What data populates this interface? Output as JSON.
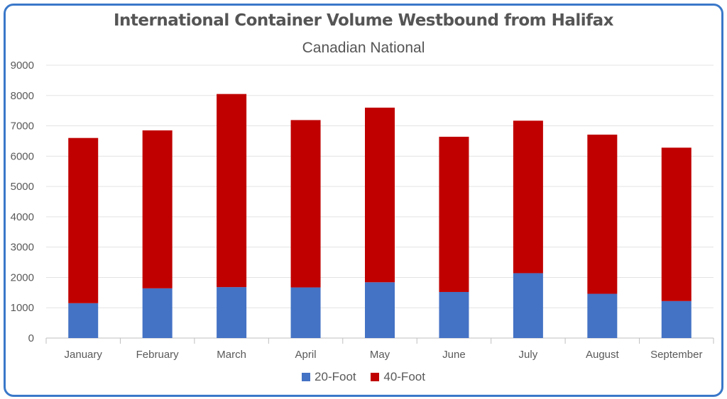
{
  "chart_data": {
    "type": "bar",
    "stacked": true,
    "title": "International Container Volume Westbound from Halifax",
    "subtitle": "Canadian National",
    "xlabel": "",
    "ylabel": "",
    "categories": [
      "January",
      "February",
      "March",
      "April",
      "May",
      "June",
      "July",
      "August",
      "September"
    ],
    "series": [
      {
        "name": "20-Foot",
        "color": "#4472c4",
        "values": [
          1150,
          1640,
          1680,
          1670,
          1840,
          1520,
          2140,
          1460,
          1220
        ]
      },
      {
        "name": "40-Foot",
        "color": "#c00000",
        "values": [
          5450,
          5210,
          6370,
          5520,
          5760,
          5120,
          5030,
          5250,
          5060
        ]
      }
    ],
    "ylim": [
      0,
      9000
    ],
    "yticks": [
      0,
      1000,
      2000,
      3000,
      4000,
      5000,
      6000,
      7000,
      8000,
      9000
    ],
    "grid": true,
    "legend_position": "bottom"
  }
}
